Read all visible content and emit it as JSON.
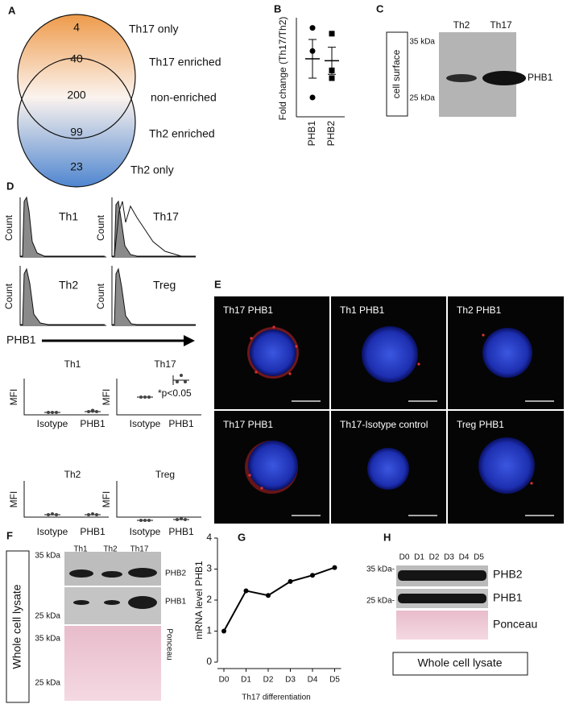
{
  "panels": {
    "A": {
      "letter": "A",
      "venn": [
        {
          "count": 4,
          "label": "Th17 only"
        },
        {
          "count": 40,
          "label": "Th17 enriched"
        },
        {
          "count": 200,
          "label": "non-enriched"
        },
        {
          "count": 99,
          "label": "Th2 enriched"
        },
        {
          "count": 23,
          "label": "Th2 only"
        }
      ]
    },
    "B": {
      "letter": "B"
    },
    "C": {
      "letter": "C",
      "box": "cell surface",
      "markers": [
        "35 kDa",
        "25 kDa"
      ],
      "lanes": [
        "Th2",
        "Th17"
      ],
      "protein": "PHB1"
    },
    "D": {
      "letter": "D",
      "histograms": [
        {
          "axis": "Count",
          "label": "Th1"
        },
        {
          "axis": "Count",
          "label": "Th17"
        },
        {
          "axis": "Count",
          "label": "Th2"
        },
        {
          "axis": "Count",
          "label": "Treg"
        }
      ],
      "axis_label": "PHB1",
      "mfi": [
        {
          "title": "Th1",
          "ylabel": "MFI",
          "categories": [
            "Isotype",
            "PHB1"
          ]
        },
        {
          "title": "Th17",
          "ylabel": "MFI",
          "categories": [
            "Isotype",
            "PHB1"
          ]
        },
        {
          "title": "Th2",
          "ylabel": "MFI",
          "categories": [
            "Isotype",
            "PHB1"
          ]
        },
        {
          "title": "Treg",
          "ylabel": "MFI",
          "categories": [
            "Isotype",
            "PHB1"
          ]
        }
      ],
      "note": "*p<0.05"
    },
    "E": {
      "letter": "E",
      "images": [
        "Th17 PHB1",
        "Th1 PHB1",
        "Th2 PHB1",
        "Th17 PHB1",
        "Th17-Isotype control",
        "Treg PHB1"
      ]
    },
    "F": {
      "letter": "F",
      "box": "Whole cell lysate",
      "lanes": [
        "Th1",
        "Th2",
        "Th17"
      ],
      "markers": [
        "35 kDa",
        "25 kDa",
        "35 kDa",
        "25 kDa"
      ],
      "proteins": [
        "PHB2",
        "PHB1",
        "Ponceau"
      ]
    },
    "G": {
      "letter": "G"
    },
    "H": {
      "letter": "H",
      "lanes": [
        "D0",
        "D1",
        "D2",
        "D3",
        "D4",
        "D5"
      ],
      "markers": [
        "35 kDa-",
        "25 kDa-"
      ],
      "proteins": [
        "PHB2",
        "PHB1",
        "Ponceau"
      ],
      "box": "Whole cell lysate"
    }
  },
  "chart_data": [
    {
      "type": "dot",
      "ylabel": "Fold change (Th17/Th2)",
      "categories": [
        "PHB1",
        "PHB2"
      ],
      "points": [
        [
          4.6,
          3.4,
          1.0
        ],
        [
          4.3,
          2.4,
          2.0
        ]
      ],
      "mean": [
        3.0,
        2.9
      ],
      "sem": [
        1.0,
        0.7
      ],
      "markers": [
        "circle",
        "square"
      ],
      "color": "#000000",
      "ylim": [
        0,
        5
      ]
    },
    {
      "type": "line",
      "ylabel": "mRNA level PHB1",
      "xlabel": "Th17 differentiation",
      "categories": [
        "D0",
        "D1",
        "D2",
        "D3",
        "D4",
        "D5"
      ],
      "values": [
        1,
        2.3,
        2.15,
        2.6,
        2.8,
        3.05
      ],
      "color": "#000000",
      "ylim": [
        0,
        4
      ],
      "yticks": [
        0,
        1,
        2,
        3,
        4
      ]
    }
  ]
}
